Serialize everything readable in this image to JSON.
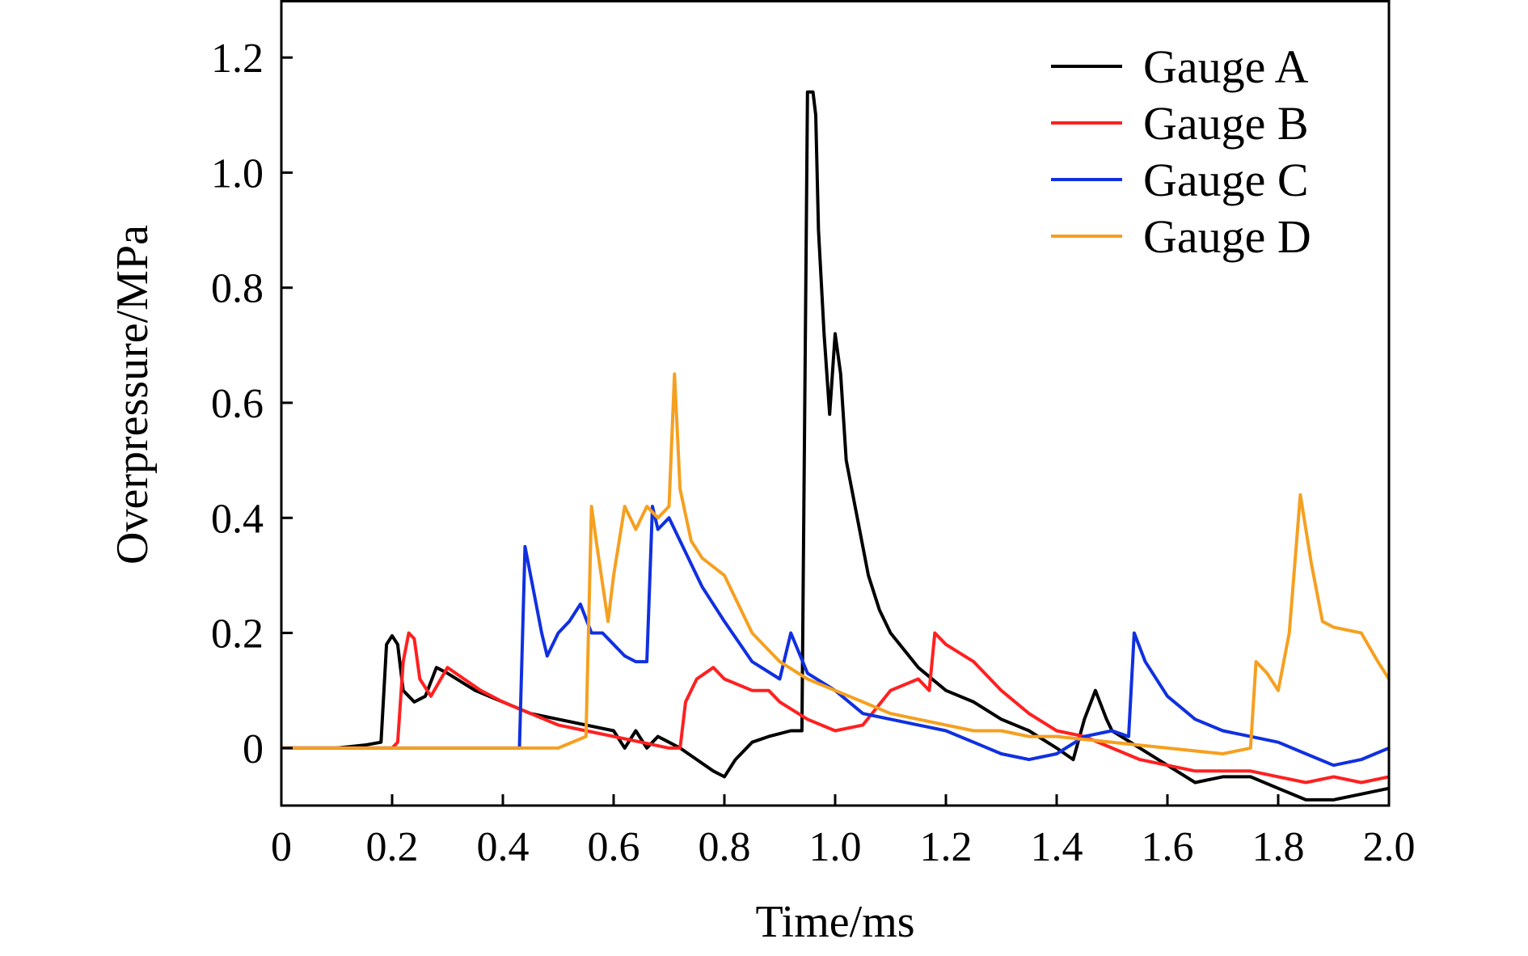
{
  "chart_data": {
    "type": "line",
    "xlabel": "Time/ms",
    "ylabel": "Overpressure/MPa",
    "xlim": [
      0,
      2.0
    ],
    "ylim": [
      -0.1,
      1.3
    ],
    "xticks": [
      "0",
      "0.2",
      "0.4",
      "0.6",
      "0.8",
      "1.0",
      "1.2",
      "1.4",
      "1.6",
      "1.8",
      "2.0"
    ],
    "yticks": [
      "0",
      "0.2",
      "0.4",
      "0.6",
      "0.8",
      "1.0",
      "1.2"
    ],
    "xtick_values": [
      0,
      0.2,
      0.4,
      0.6,
      0.8,
      1.0,
      1.2,
      1.4,
      1.6,
      1.8,
      2.0
    ],
    "ytick_values": [
      0,
      0.2,
      0.4,
      0.6,
      0.8,
      1.0,
      1.2
    ],
    "grid": false,
    "legend_position": "top-right",
    "series": [
      {
        "name": "Gauge A",
        "color": "#000000",
        "x": [
          0,
          0.05,
          0.1,
          0.15,
          0.18,
          0.19,
          0.2,
          0.21,
          0.22,
          0.24,
          0.26,
          0.28,
          0.3,
          0.35,
          0.4,
          0.45,
          0.5,
          0.55,
          0.6,
          0.62,
          0.64,
          0.66,
          0.68,
          0.7,
          0.72,
          0.75,
          0.78,
          0.8,
          0.82,
          0.85,
          0.88,
          0.92,
          0.94,
          0.95,
          0.96,
          0.965,
          0.97,
          0.98,
          0.99,
          1.0,
          1.01,
          1.02,
          1.04,
          1.06,
          1.08,
          1.1,
          1.15,
          1.2,
          1.25,
          1.3,
          1.35,
          1.4,
          1.43,
          1.45,
          1.47,
          1.49,
          1.5,
          1.55,
          1.6,
          1.65,
          1.7,
          1.75,
          1.8,
          1.85,
          1.9,
          1.95,
          2.0
        ],
        "y": [
          0,
          0,
          0,
          0.005,
          0.01,
          0.18,
          0.195,
          0.18,
          0.1,
          0.08,
          0.09,
          0.14,
          0.13,
          0.1,
          0.08,
          0.06,
          0.05,
          0.04,
          0.03,
          0.0,
          0.03,
          0.0,
          0.02,
          0.01,
          0.0,
          -0.02,
          -0.04,
          -0.05,
          -0.02,
          0.01,
          0.02,
          0.03,
          0.03,
          1.14,
          1.14,
          1.1,
          0.9,
          0.72,
          0.58,
          0.72,
          0.65,
          0.5,
          0.4,
          0.3,
          0.24,
          0.2,
          0.14,
          0.1,
          0.08,
          0.05,
          0.03,
          0.0,
          -0.02,
          0.05,
          0.1,
          0.05,
          0.03,
          0.0,
          -0.03,
          -0.06,
          -0.05,
          -0.05,
          -0.07,
          -0.09,
          -0.09,
          -0.08,
          -0.07
        ]
      },
      {
        "name": "Gauge B",
        "color": "#ff2020",
        "x": [
          0,
          0.1,
          0.2,
          0.21,
          0.22,
          0.23,
          0.24,
          0.25,
          0.27,
          0.3,
          0.33,
          0.36,
          0.4,
          0.45,
          0.5,
          0.55,
          0.6,
          0.65,
          0.7,
          0.72,
          0.73,
          0.75,
          0.78,
          0.8,
          0.85,
          0.88,
          0.9,
          0.95,
          1.0,
          1.05,
          1.1,
          1.15,
          1.17,
          1.18,
          1.2,
          1.25,
          1.3,
          1.35,
          1.4,
          1.45,
          1.5,
          1.55,
          1.6,
          1.65,
          1.7,
          1.75,
          1.8,
          1.85,
          1.9,
          1.95,
          2.0
        ],
        "y": [
          0,
          0,
          0,
          0.01,
          0.15,
          0.2,
          0.19,
          0.12,
          0.09,
          0.14,
          0.12,
          0.1,
          0.08,
          0.06,
          0.04,
          0.03,
          0.02,
          0.01,
          0.0,
          0.0,
          0.08,
          0.12,
          0.14,
          0.12,
          0.1,
          0.1,
          0.08,
          0.05,
          0.03,
          0.04,
          0.1,
          0.12,
          0.1,
          0.2,
          0.18,
          0.15,
          0.1,
          0.06,
          0.03,
          0.02,
          0.0,
          -0.02,
          -0.03,
          -0.04,
          -0.04,
          -0.04,
          -0.05,
          -0.06,
          -0.05,
          -0.06,
          -0.05
        ]
      },
      {
        "name": "Gauge C",
        "color": "#1030e0",
        "x": [
          0,
          0.1,
          0.2,
          0.3,
          0.4,
          0.43,
          0.44,
          0.45,
          0.47,
          0.48,
          0.5,
          0.52,
          0.54,
          0.56,
          0.58,
          0.6,
          0.62,
          0.64,
          0.66,
          0.67,
          0.68,
          0.7,
          0.72,
          0.74,
          0.76,
          0.8,
          0.85,
          0.9,
          0.92,
          0.95,
          1.0,
          1.05,
          1.1,
          1.15,
          1.2,
          1.25,
          1.3,
          1.35,
          1.4,
          1.45,
          1.5,
          1.53,
          1.54,
          1.56,
          1.6,
          1.65,
          1.7,
          1.75,
          1.8,
          1.85,
          1.9,
          1.95,
          2.0
        ],
        "y": [
          0,
          0,
          0,
          0,
          0,
          0,
          0.35,
          0.3,
          0.2,
          0.16,
          0.2,
          0.22,
          0.25,
          0.2,
          0.2,
          0.18,
          0.16,
          0.15,
          0.15,
          0.42,
          0.38,
          0.4,
          0.36,
          0.32,
          0.28,
          0.22,
          0.15,
          0.12,
          0.2,
          0.13,
          0.1,
          0.06,
          0.05,
          0.04,
          0.03,
          0.01,
          -0.01,
          -0.02,
          -0.01,
          0.02,
          0.03,
          0.02,
          0.2,
          0.15,
          0.09,
          0.05,
          0.03,
          0.02,
          0.01,
          -0.01,
          -0.03,
          -0.02,
          0.0
        ]
      },
      {
        "name": "Gauge D",
        "color": "#f5a020",
        "x": [
          0,
          0.1,
          0.2,
          0.3,
          0.4,
          0.5,
          0.55,
          0.56,
          0.57,
          0.59,
          0.6,
          0.62,
          0.64,
          0.66,
          0.68,
          0.7,
          0.71,
          0.72,
          0.74,
          0.76,
          0.8,
          0.85,
          0.9,
          0.95,
          1.0,
          1.05,
          1.1,
          1.15,
          1.2,
          1.25,
          1.3,
          1.35,
          1.4,
          1.5,
          1.6,
          1.7,
          1.75,
          1.76,
          1.78,
          1.8,
          1.82,
          1.84,
          1.86,
          1.88,
          1.9,
          1.95,
          1.98,
          2.0
        ],
        "y": [
          0,
          0,
          0,
          0,
          0,
          0,
          0.02,
          0.42,
          0.35,
          0.22,
          0.3,
          0.42,
          0.38,
          0.42,
          0.4,
          0.42,
          0.65,
          0.45,
          0.36,
          0.33,
          0.3,
          0.2,
          0.15,
          0.12,
          0.1,
          0.08,
          0.06,
          0.05,
          0.04,
          0.03,
          0.03,
          0.02,
          0.02,
          0.01,
          0.0,
          -0.01,
          0.0,
          0.15,
          0.13,
          0.1,
          0.2,
          0.44,
          0.32,
          0.22,
          0.21,
          0.2,
          0.15,
          0.12
        ]
      }
    ]
  }
}
